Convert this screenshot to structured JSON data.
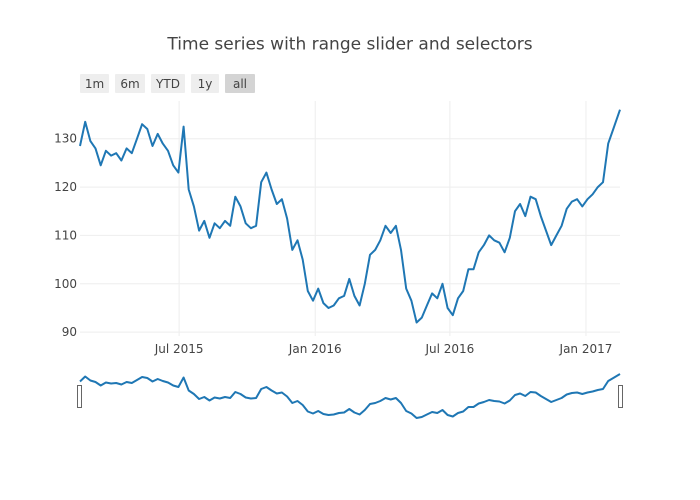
{
  "chart_data": {
    "type": "line",
    "title": "Time series with range slider and selectors",
    "xlabel": "",
    "ylabel": "",
    "xlim": [
      "2015-02-17",
      "2017-02-16"
    ],
    "ylim": [
      89.2,
      137.8
    ],
    "grid": true,
    "line_color": "#1f77b4",
    "x_ticks": [
      {
        "date": "2015-07-01",
        "label": "Jul 2015"
      },
      {
        "date": "2016-01-01",
        "label": "Jan 2016"
      },
      {
        "date": "2016-07-01",
        "label": "Jul 2016"
      },
      {
        "date": "2017-01-01",
        "label": "Jan 2017"
      }
    ],
    "y_ticks": [
      90,
      100,
      110,
      120,
      130
    ],
    "range_selectors": [
      {
        "label": "1m",
        "active": false
      },
      {
        "label": "6m",
        "active": false
      },
      {
        "label": "YTD",
        "active": false
      },
      {
        "label": "1y",
        "active": false
      },
      {
        "label": "all",
        "active": true
      }
    ],
    "range_slider": true,
    "series": [
      {
        "x": [
          "2015-02-17",
          "2015-02-24",
          "2015-03-03",
          "2015-03-10",
          "2015-03-17",
          "2015-03-24",
          "2015-03-31",
          "2015-04-07",
          "2015-04-14",
          "2015-04-21",
          "2015-04-28",
          "2015-05-05",
          "2015-05-12",
          "2015-05-19",
          "2015-05-26",
          "2015-06-02",
          "2015-06-09",
          "2015-06-16",
          "2015-06-23",
          "2015-06-30",
          "2015-07-07",
          "2015-07-14",
          "2015-07-21",
          "2015-07-28",
          "2015-08-04",
          "2015-08-11",
          "2015-08-18",
          "2015-08-25",
          "2015-09-01",
          "2015-09-08",
          "2015-09-15",
          "2015-09-22",
          "2015-09-29",
          "2015-10-06",
          "2015-10-13",
          "2015-10-20",
          "2015-10-27",
          "2015-11-03",
          "2015-11-10",
          "2015-11-17",
          "2015-11-24",
          "2015-12-01",
          "2015-12-08",
          "2015-12-15",
          "2015-12-22",
          "2015-12-29",
          "2016-01-05",
          "2016-01-12",
          "2016-01-19",
          "2016-01-26",
          "2016-02-02",
          "2016-02-09",
          "2016-02-16",
          "2016-02-23",
          "2016-03-01",
          "2016-03-08",
          "2016-03-15",
          "2016-03-22",
          "2016-03-29",
          "2016-04-05",
          "2016-04-12",
          "2016-04-19",
          "2016-04-26",
          "2016-05-03",
          "2016-05-10",
          "2016-05-17",
          "2016-05-24",
          "2016-05-31",
          "2016-06-07",
          "2016-06-14",
          "2016-06-21",
          "2016-06-28",
          "2016-07-05",
          "2016-07-12",
          "2016-07-19",
          "2016-07-26",
          "2016-08-02",
          "2016-08-09",
          "2016-08-16",
          "2016-08-23",
          "2016-08-30",
          "2016-09-06",
          "2016-09-13",
          "2016-09-20",
          "2016-09-27",
          "2016-10-04",
          "2016-10-11",
          "2016-10-18",
          "2016-10-25",
          "2016-11-01",
          "2016-11-08",
          "2016-11-15",
          "2016-11-22",
          "2016-11-29",
          "2016-12-06",
          "2016-12-13",
          "2016-12-20",
          "2016-12-27",
          "2017-01-03",
          "2017-01-10",
          "2017-01-17",
          "2017-01-24",
          "2017-01-31",
          "2017-02-07",
          "2017-02-16"
        ],
        "y": [
          128.5,
          133.5,
          129.5,
          128,
          124.5,
          127.5,
          126.5,
          127,
          125.5,
          128,
          127,
          130,
          133,
          132,
          128.5,
          131,
          129,
          127.5,
          124.5,
          123,
          132.5,
          119.5,
          116,
          111,
          113,
          109.5,
          112.5,
          111.5,
          113,
          112,
          118,
          116,
          112.5,
          111.5,
          112,
          121,
          123,
          119.5,
          116.5,
          117.5,
          113.5,
          107,
          109,
          105,
          98.5,
          96.5,
          99,
          96,
          95,
          95.5,
          97,
          97.5,
          101,
          97.5,
          95.5,
          100,
          106,
          107,
          109,
          112,
          110.5,
          112,
          107,
          99,
          96.5,
          92,
          93,
          95.5,
          98,
          97,
          100,
          95,
          93.5,
          97,
          98.5,
          103,
          103,
          106.5,
          108,
          110,
          109,
          108.5,
          106.5,
          109.5,
          115,
          116.5,
          114,
          118,
          117.5,
          114,
          111,
          108,
          110,
          112,
          115.5,
          117,
          117.5,
          116,
          117.5,
          118.5,
          120,
          121,
          129,
          132,
          136
        ]
      }
    ]
  }
}
